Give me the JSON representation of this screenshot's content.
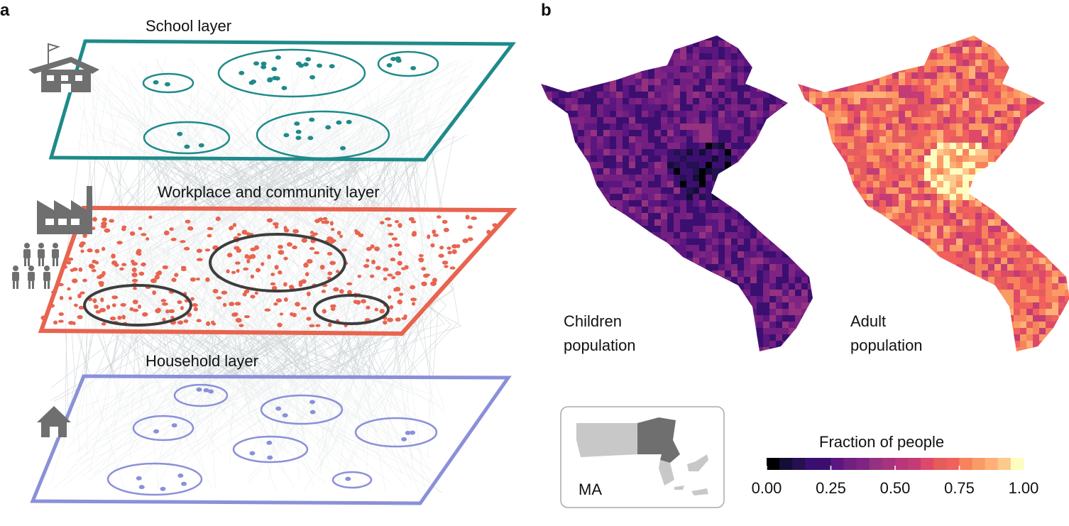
{
  "panel_a": {
    "label": "a",
    "layers": [
      {
        "title": "School layer",
        "color": "#1f8a8a"
      },
      {
        "title": "Workplace and community layer",
        "color": "#e8644f"
      },
      {
        "title": "Household layer",
        "color": "#8a90d8"
      }
    ],
    "icons": [
      "school-icon",
      "factory-icon",
      "people-icon",
      "house-icon"
    ]
  },
  "panel_b": {
    "label": "b",
    "maps": [
      {
        "line1": "Children",
        "line2": "population"
      },
      {
        "line1": "Adult",
        "line2": "population"
      }
    ],
    "inset_label": "MA",
    "colorbar": {
      "title": "Fraction of people",
      "ticks": [
        "0.00",
        "0.25",
        "0.50",
        "0.75",
        "1.00"
      ],
      "colors": [
        "#000004",
        "#140e36",
        "#231151",
        "#3b0f70",
        "#3b0f70",
        "#5c167f",
        "#721f81",
        "#7f2482",
        "#94327f",
        "#a8327d",
        "#b73779",
        "#c43c75",
        "#de4968",
        "#e55c5f",
        "#f1605d",
        "#f7835c",
        "#fb9b64",
        "#feb078",
        "#fec98d",
        "#fcfdbf"
      ]
    }
  }
}
